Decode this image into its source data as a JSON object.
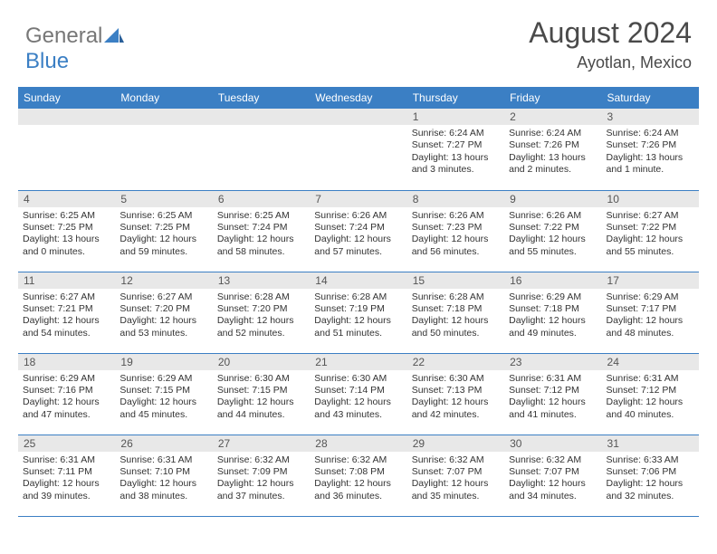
{
  "logo": {
    "part1": "General",
    "part2": "Blue"
  },
  "title": "August 2024",
  "location": "Ayotlan, Mexico",
  "colors": {
    "header_bg": "#3b7fc4",
    "header_fg": "#ffffff",
    "daynum_bg": "#e8e8e8",
    "daynum_fg": "#555555",
    "text": "#333333",
    "logo_gray": "#777777",
    "logo_blue": "#3b7fc4",
    "row_border": "#3b7fc4"
  },
  "fonts": {
    "title_size": 32,
    "location_size": 18,
    "weekday_size": 12,
    "daynum_size": 12,
    "body_size": 10.5
  },
  "weekdays": [
    "Sunday",
    "Monday",
    "Tuesday",
    "Wednesday",
    "Thursday",
    "Friday",
    "Saturday"
  ],
  "blanks_before": 4,
  "days": [
    {
      "n": "1",
      "sunrise": "Sunrise: 6:24 AM",
      "sunset": "Sunset: 7:27 PM",
      "daylight": "Daylight: 13 hours and 3 minutes."
    },
    {
      "n": "2",
      "sunrise": "Sunrise: 6:24 AM",
      "sunset": "Sunset: 7:26 PM",
      "daylight": "Daylight: 13 hours and 2 minutes."
    },
    {
      "n": "3",
      "sunrise": "Sunrise: 6:24 AM",
      "sunset": "Sunset: 7:26 PM",
      "daylight": "Daylight: 13 hours and 1 minute."
    },
    {
      "n": "4",
      "sunrise": "Sunrise: 6:25 AM",
      "sunset": "Sunset: 7:25 PM",
      "daylight": "Daylight: 13 hours and 0 minutes."
    },
    {
      "n": "5",
      "sunrise": "Sunrise: 6:25 AM",
      "sunset": "Sunset: 7:25 PM",
      "daylight": "Daylight: 12 hours and 59 minutes."
    },
    {
      "n": "6",
      "sunrise": "Sunrise: 6:25 AM",
      "sunset": "Sunset: 7:24 PM",
      "daylight": "Daylight: 12 hours and 58 minutes."
    },
    {
      "n": "7",
      "sunrise": "Sunrise: 6:26 AM",
      "sunset": "Sunset: 7:24 PM",
      "daylight": "Daylight: 12 hours and 57 minutes."
    },
    {
      "n": "8",
      "sunrise": "Sunrise: 6:26 AM",
      "sunset": "Sunset: 7:23 PM",
      "daylight": "Daylight: 12 hours and 56 minutes."
    },
    {
      "n": "9",
      "sunrise": "Sunrise: 6:26 AM",
      "sunset": "Sunset: 7:22 PM",
      "daylight": "Daylight: 12 hours and 55 minutes."
    },
    {
      "n": "10",
      "sunrise": "Sunrise: 6:27 AM",
      "sunset": "Sunset: 7:22 PM",
      "daylight": "Daylight: 12 hours and 55 minutes."
    },
    {
      "n": "11",
      "sunrise": "Sunrise: 6:27 AM",
      "sunset": "Sunset: 7:21 PM",
      "daylight": "Daylight: 12 hours and 54 minutes."
    },
    {
      "n": "12",
      "sunrise": "Sunrise: 6:27 AM",
      "sunset": "Sunset: 7:20 PM",
      "daylight": "Daylight: 12 hours and 53 minutes."
    },
    {
      "n": "13",
      "sunrise": "Sunrise: 6:28 AM",
      "sunset": "Sunset: 7:20 PM",
      "daylight": "Daylight: 12 hours and 52 minutes."
    },
    {
      "n": "14",
      "sunrise": "Sunrise: 6:28 AM",
      "sunset": "Sunset: 7:19 PM",
      "daylight": "Daylight: 12 hours and 51 minutes."
    },
    {
      "n": "15",
      "sunrise": "Sunrise: 6:28 AM",
      "sunset": "Sunset: 7:18 PM",
      "daylight": "Daylight: 12 hours and 50 minutes."
    },
    {
      "n": "16",
      "sunrise": "Sunrise: 6:29 AM",
      "sunset": "Sunset: 7:18 PM",
      "daylight": "Daylight: 12 hours and 49 minutes."
    },
    {
      "n": "17",
      "sunrise": "Sunrise: 6:29 AM",
      "sunset": "Sunset: 7:17 PM",
      "daylight": "Daylight: 12 hours and 48 minutes."
    },
    {
      "n": "18",
      "sunrise": "Sunrise: 6:29 AM",
      "sunset": "Sunset: 7:16 PM",
      "daylight": "Daylight: 12 hours and 47 minutes."
    },
    {
      "n": "19",
      "sunrise": "Sunrise: 6:29 AM",
      "sunset": "Sunset: 7:15 PM",
      "daylight": "Daylight: 12 hours and 45 minutes."
    },
    {
      "n": "20",
      "sunrise": "Sunrise: 6:30 AM",
      "sunset": "Sunset: 7:15 PM",
      "daylight": "Daylight: 12 hours and 44 minutes."
    },
    {
      "n": "21",
      "sunrise": "Sunrise: 6:30 AM",
      "sunset": "Sunset: 7:14 PM",
      "daylight": "Daylight: 12 hours and 43 minutes."
    },
    {
      "n": "22",
      "sunrise": "Sunrise: 6:30 AM",
      "sunset": "Sunset: 7:13 PM",
      "daylight": "Daylight: 12 hours and 42 minutes."
    },
    {
      "n": "23",
      "sunrise": "Sunrise: 6:31 AM",
      "sunset": "Sunset: 7:12 PM",
      "daylight": "Daylight: 12 hours and 41 minutes."
    },
    {
      "n": "24",
      "sunrise": "Sunrise: 6:31 AM",
      "sunset": "Sunset: 7:12 PM",
      "daylight": "Daylight: 12 hours and 40 minutes."
    },
    {
      "n": "25",
      "sunrise": "Sunrise: 6:31 AM",
      "sunset": "Sunset: 7:11 PM",
      "daylight": "Daylight: 12 hours and 39 minutes."
    },
    {
      "n": "26",
      "sunrise": "Sunrise: 6:31 AM",
      "sunset": "Sunset: 7:10 PM",
      "daylight": "Daylight: 12 hours and 38 minutes."
    },
    {
      "n": "27",
      "sunrise": "Sunrise: 6:32 AM",
      "sunset": "Sunset: 7:09 PM",
      "daylight": "Daylight: 12 hours and 37 minutes."
    },
    {
      "n": "28",
      "sunrise": "Sunrise: 6:32 AM",
      "sunset": "Sunset: 7:08 PM",
      "daylight": "Daylight: 12 hours and 36 minutes."
    },
    {
      "n": "29",
      "sunrise": "Sunrise: 6:32 AM",
      "sunset": "Sunset: 7:07 PM",
      "daylight": "Daylight: 12 hours and 35 minutes."
    },
    {
      "n": "30",
      "sunrise": "Sunrise: 6:32 AM",
      "sunset": "Sunset: 7:07 PM",
      "daylight": "Daylight: 12 hours and 34 minutes."
    },
    {
      "n": "31",
      "sunrise": "Sunrise: 6:33 AM",
      "sunset": "Sunset: 7:06 PM",
      "daylight": "Daylight: 12 hours and 32 minutes."
    }
  ]
}
